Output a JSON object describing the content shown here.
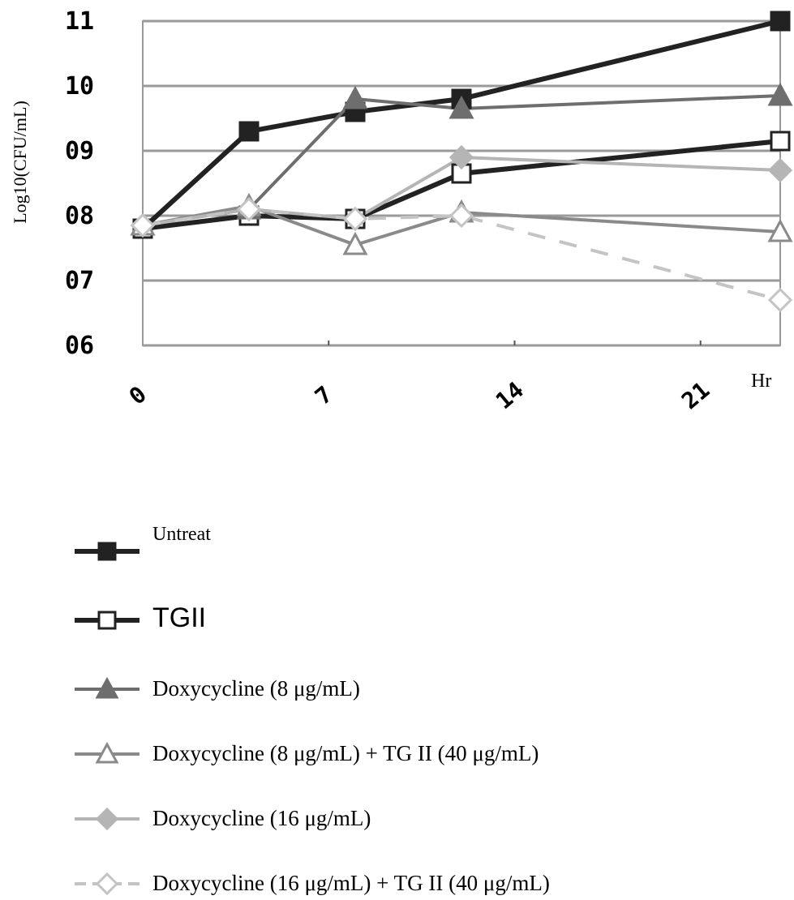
{
  "chart_data": {
    "type": "line",
    "ylabel": "Log10(CFU/mL)",
    "y_tick_labels": [
      "06",
      "07",
      "08",
      "09",
      "10",
      "11"
    ],
    "y_tick_values": [
      6,
      7,
      8,
      9,
      10,
      11
    ],
    "ylim": [
      6,
      11
    ],
    "x_unit_label": "Hr",
    "x_tick_labels": [
      "0",
      "7",
      "14",
      "21"
    ],
    "x_tick_values": [
      0,
      7,
      14,
      21
    ],
    "xlim": [
      0,
      24
    ],
    "grid": true,
    "legend_position": "bottom",
    "series": [
      {
        "name": "Untreat",
        "marker": "square-filled",
        "color": "#222222",
        "dash": false,
        "x": [
          0,
          4,
          8,
          12,
          24
        ],
        "y": [
          7.8,
          9.3,
          9.6,
          9.8,
          11.0
        ]
      },
      {
        "name": "TGII",
        "marker": "square-open",
        "color": "#222222",
        "dash": false,
        "x": [
          0,
          4,
          8,
          12,
          24
        ],
        "y": [
          7.8,
          8.0,
          7.95,
          8.65,
          9.15
        ]
      },
      {
        "name": "Doxycycline (8 μg/mL)",
        "marker": "triangle-filled",
        "color": "#6e6e6e",
        "dash": false,
        "x": [
          0,
          4,
          8,
          12,
          24
        ],
        "y": [
          7.85,
          8.1,
          9.8,
          9.65,
          9.85
        ]
      },
      {
        "name": "Doxycycline (8 μg/mL) + TG II (40 μg/mL)",
        "marker": "triangle-open",
        "color": "#8a8a8a",
        "dash": false,
        "x": [
          0,
          4,
          8,
          12,
          24
        ],
        "y": [
          7.85,
          8.15,
          7.55,
          8.05,
          7.75
        ]
      },
      {
        "name": "Doxycycline (16 μg/mL)",
        "marker": "diamond-filled",
        "color": "#b5b5b5",
        "dash": false,
        "x": [
          0,
          4,
          8,
          12,
          24
        ],
        "y": [
          7.85,
          8.1,
          7.95,
          8.9,
          8.7
        ]
      },
      {
        "name": "Doxycycline (16 μg/mL) + TG II (40 μg/mL)",
        "marker": "diamond-open",
        "color": "#c4c4c4",
        "dash": true,
        "x": [
          0,
          4,
          8,
          12,
          24
        ],
        "y": [
          7.85,
          8.1,
          7.95,
          8.0,
          6.7
        ]
      }
    ]
  }
}
